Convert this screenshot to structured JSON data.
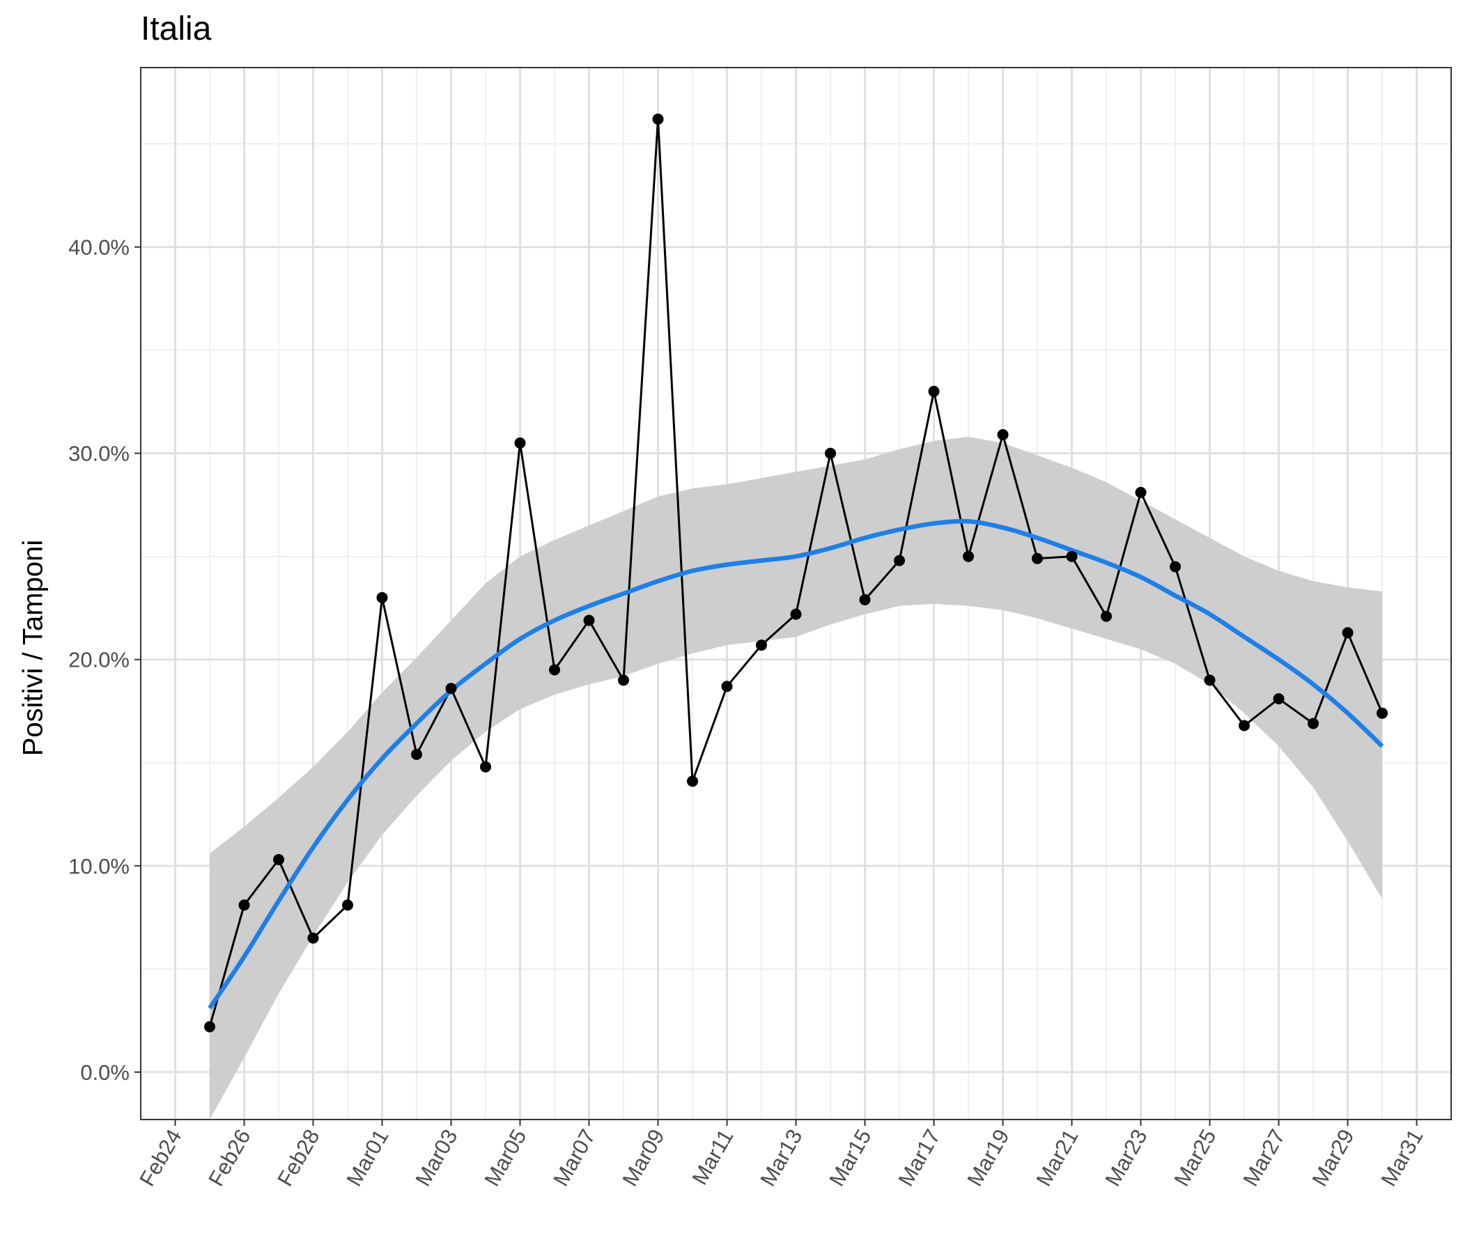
{
  "chart_data": {
    "type": "line",
    "title": "Italia",
    "xlabel": "",
    "ylabel": "Positivi / Tamponi",
    "x_tick_labels": [
      "Feb24",
      "Feb26",
      "Feb28",
      "Mar01",
      "Mar03",
      "Mar05",
      "Mar07",
      "Mar09",
      "Mar11",
      "Mar13",
      "Mar15",
      "Mar17",
      "Mar19",
      "Mar21",
      "Mar23",
      "Mar25",
      "Mar27",
      "Mar29",
      "Mar31"
    ],
    "y_tick_labels": [
      "0.0%",
      "10.0%",
      "20.0%",
      "30.0%",
      "40.0%"
    ],
    "y_ticks": [
      0,
      10,
      20,
      30,
      40
    ],
    "xlim": [
      "2020-02-23",
      "2020-04-01"
    ],
    "ylim": [
      -2.3,
      48.7
    ],
    "grid": true,
    "series": [
      {
        "type": "line+points",
        "color": "#000000",
        "x": [
          "2020-02-25",
          "2020-02-26",
          "2020-02-27",
          "2020-02-28",
          "2020-02-29",
          "2020-03-01",
          "2020-03-02",
          "2020-03-03",
          "2020-03-04",
          "2020-03-05",
          "2020-03-06",
          "2020-03-07",
          "2020-03-08",
          "2020-03-09",
          "2020-03-10",
          "2020-03-11",
          "2020-03-12",
          "2020-03-13",
          "2020-03-14",
          "2020-03-15",
          "2020-03-16",
          "2020-03-17",
          "2020-03-18",
          "2020-03-19",
          "2020-03-20",
          "2020-03-21",
          "2020-03-22",
          "2020-03-23",
          "2020-03-24",
          "2020-03-25",
          "2020-03-26",
          "2020-03-27",
          "2020-03-28",
          "2020-03-29",
          "2020-03-30"
        ],
        "y": [
          2.2,
          8.1,
          10.3,
          6.5,
          8.1,
          23.0,
          15.4,
          18.6,
          14.8,
          30.5,
          19.5,
          21.9,
          19.0,
          46.2,
          14.1,
          18.7,
          20.7,
          22.2,
          30.0,
          22.9,
          24.8,
          33.0,
          25.0,
          30.9,
          24.9,
          25.0,
          22.1,
          28.1,
          24.5,
          19.0,
          16.8,
          18.1,
          16.9,
          21.3,
          17.4
        ]
      },
      {
        "type": "smooth",
        "color": "#1f7fe6",
        "band_color": "#cbcbcb",
        "x": [
          "2020-02-25",
          "2020-02-26",
          "2020-02-27",
          "2020-02-28",
          "2020-02-29",
          "2020-03-01",
          "2020-03-02",
          "2020-03-03",
          "2020-03-04",
          "2020-03-05",
          "2020-03-06",
          "2020-03-07",
          "2020-03-08",
          "2020-03-09",
          "2020-03-10",
          "2020-03-11",
          "2020-03-12",
          "2020-03-13",
          "2020-03-14",
          "2020-03-15",
          "2020-03-16",
          "2020-03-17",
          "2020-03-18",
          "2020-03-19",
          "2020-03-20",
          "2020-03-21",
          "2020-03-22",
          "2020-03-23",
          "2020-03-24",
          "2020-03-25",
          "2020-03-26",
          "2020-03-27",
          "2020-03-28",
          "2020-03-29",
          "2020-03-30"
        ],
        "y": [
          3.1,
          5.6,
          8.3,
          10.9,
          13.2,
          15.2,
          16.9,
          18.5,
          19.8,
          21.0,
          21.9,
          22.6,
          23.2,
          23.8,
          24.3,
          24.6,
          24.8,
          25.0,
          25.4,
          25.9,
          26.3,
          26.6,
          26.7,
          26.4,
          25.9,
          25.3,
          24.7,
          24.0,
          23.1,
          22.2,
          21.1,
          20.0,
          18.8,
          17.4,
          15.8
        ],
        "lower": [
          -2.3,
          0.7,
          3.8,
          6.6,
          9.2,
          11.5,
          13.4,
          15.1,
          16.5,
          17.6,
          18.3,
          18.8,
          19.2,
          19.8,
          20.3,
          20.7,
          20.9,
          21.1,
          21.7,
          22.2,
          22.6,
          22.7,
          22.6,
          22.4,
          22.0,
          21.5,
          21.0,
          20.5,
          19.8,
          18.8,
          17.4,
          15.8,
          13.8,
          11.2,
          8.4
        ],
        "upper": [
          10.6,
          11.9,
          13.3,
          14.8,
          16.5,
          18.4,
          20.1,
          21.9,
          23.7,
          25.0,
          25.8,
          26.5,
          27.2,
          27.9,
          28.3,
          28.5,
          28.8,
          29.1,
          29.4,
          29.7,
          30.2,
          30.6,
          30.8,
          30.5,
          29.9,
          29.3,
          28.6,
          27.7,
          26.8,
          25.9,
          25.0,
          24.3,
          23.8,
          23.5,
          23.3
        ]
      }
    ]
  }
}
